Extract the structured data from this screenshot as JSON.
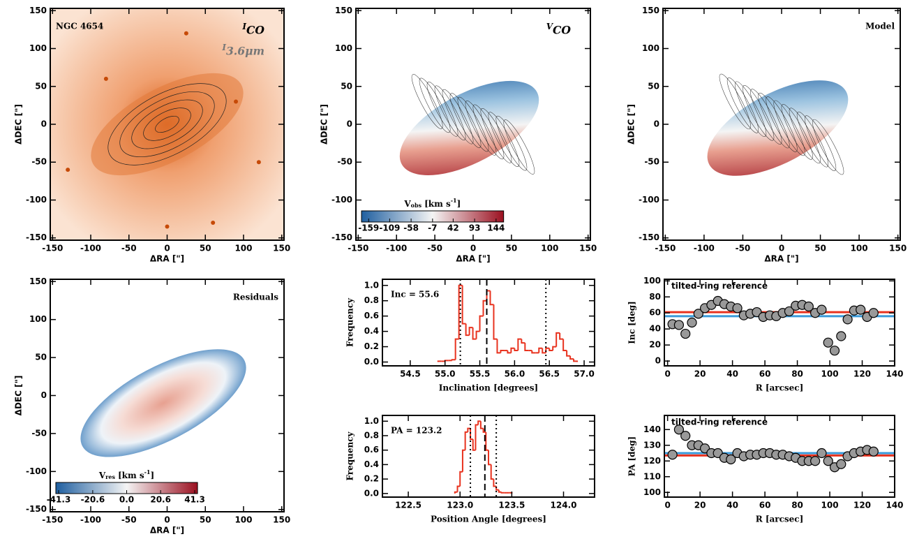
{
  "chart_data": [
    {
      "type": "image",
      "colormap": "orange",
      "title": "NGC 4654",
      "labels": [
        {
          "symbol": "I",
          "subscript": "CO"
        },
        {
          "symbol": "I",
          "subscript": "3.6μm"
        }
      ],
      "xlabel": "ΔRA [\"]",
      "ylabel": "ΔDEC [\"]",
      "xlim": [
        -153,
        153
      ],
      "ylim": [
        -153,
        153
      ],
      "xticks": [
        -150,
        -100,
        -50,
        0,
        50,
        100,
        150
      ],
      "yticks": [
        -150,
        -100,
        -50,
        0,
        50,
        100,
        150
      ]
    },
    {
      "type": "image",
      "colormap": "diverging",
      "labels": [
        {
          "symbol": "V",
          "subscript": "CO"
        }
      ],
      "xlabel": "ΔRA [\"]",
      "ylabel": "ΔDEC [\"]",
      "xlim": [
        -153,
        153
      ],
      "ylim": [
        -153,
        153
      ],
      "xticks": [
        -150,
        -100,
        -50,
        0,
        50,
        100,
        150
      ],
      "yticks": [
        -150,
        -100,
        -50,
        0,
        50,
        100,
        150
      ],
      "colorbar": {
        "symbol": "V",
        "subscript": "obs",
        "unit": "[km s",
        "exponent": "-1",
        "close": "]",
        "lim": [
          -176,
          162
        ],
        "ticks": [
          -159,
          -109,
          -58,
          -7,
          42,
          93,
          144
        ]
      }
    },
    {
      "type": "image",
      "colormap": "model",
      "title": "Model",
      "xlabel": "ΔRA [\"]",
      "ylabel": "ΔDEC [\"]",
      "xlim": [
        -153,
        153
      ],
      "ylim": [
        -153,
        153
      ],
      "xticks": [
        -150,
        -100,
        -50,
        0,
        50,
        100,
        150
      ],
      "yticks": [
        -150,
        -100,
        -50,
        0,
        50,
        100,
        150
      ]
    },
    {
      "type": "image",
      "colormap": "residual",
      "title": "Residuals",
      "xlabel": "ΔRA [\"]",
      "ylabel": "ΔDEC [\"]",
      "xlim": [
        -153,
        153
      ],
      "ylim": [
        -153,
        153
      ],
      "xticks": [
        -150,
        -100,
        -50,
        0,
        50,
        100,
        150
      ],
      "yticks": [
        -150,
        -100,
        -50,
        0,
        50,
        100,
        150
      ],
      "colorbar": {
        "symbol": "V",
        "subscript": "res",
        "unit": "[km s",
        "exponent": "-1",
        "close": "]",
        "lim": [
          -43,
          43
        ],
        "ticks": [
          -41.3,
          -20.6,
          {
            "value": 0,
            "label": "0.0"
          },
          20.6,
          41.3
        ]
      }
    },
    {
      "type": "histogram",
      "color": "#e8321e",
      "label": "Inc = 55.6",
      "xlabel": "Inclination [degrees]",
      "ylabel": "Frequency",
      "xlim": [
        54.1,
        57.15
      ],
      "ylim": [
        -0.05,
        1.08
      ],
      "xticks": [
        54.5,
        {
          "value": 55,
          "label": "55.0"
        },
        55.5,
        {
          "value": 56,
          "label": "56.0"
        },
        56.5,
        {
          "value": 57,
          "label": "57.0"
        }
      ],
      "yticks": [
        {
          "value": 0,
          "label": "0.0"
        },
        0.2,
        0.4,
        0.6,
        0.8,
        {
          "value": 1,
          "label": "1.0"
        }
      ],
      "dashed_line": 55.6,
      "dotted_lines": [
        55.22,
        56.45
      ],
      "bins": [
        54.9,
        54.95,
        55.0,
        55.05,
        55.1,
        55.15,
        55.2,
        55.25,
        55.3,
        55.35,
        55.4,
        55.45,
        55.5,
        55.55,
        55.6,
        55.65,
        55.7,
        55.75,
        55.8,
        55.85,
        55.9,
        55.95,
        56.0,
        56.05,
        56.1,
        56.15,
        56.2,
        56.25,
        56.3,
        56.35,
        56.4,
        56.45,
        56.5,
        56.55,
        56.6,
        56.65,
        56.7,
        56.75,
        56.8,
        56.85,
        56.9
      ],
      "values": [
        0.01,
        0.01,
        0.02,
        0.02,
        0.03,
        0.3,
        1.0,
        0.5,
        0.35,
        0.45,
        0.3,
        0.4,
        0.6,
        0.8,
        0.93,
        0.75,
        0.3,
        0.12,
        0.15,
        0.15,
        0.12,
        0.18,
        0.15,
        0.3,
        0.25,
        0.15,
        0.15,
        0.12,
        0.12,
        0.18,
        0.12,
        0.18,
        0.15,
        0.2,
        0.38,
        0.3,
        0.15,
        0.08,
        0.04,
        0.01
      ]
    },
    {
      "type": "histogram",
      "color": "#e8321e",
      "label": "PA = 123.2",
      "xlabel": "Position Angle [degrees]",
      "ylabel": "Frequency",
      "xlim": [
        122.25,
        124.3
      ],
      "ylim": [
        -0.05,
        1.08
      ],
      "xticks": [
        122.5,
        {
          "value": 123,
          "label": "123.0"
        },
        123.5,
        {
          "value": 124,
          "label": "124.0"
        }
      ],
      "yticks": [
        {
          "value": 0,
          "label": "0.0"
        },
        0.2,
        0.4,
        0.6,
        0.8,
        {
          "value": 1,
          "label": "1.0"
        }
      ],
      "dashed_line": 123.24,
      "dotted_lines": [
        123.1,
        123.35
      ],
      "bins": [
        122.95,
        122.975,
        123.0,
        123.025,
        123.05,
        123.075,
        123.1,
        123.125,
        123.15,
        123.175,
        123.2,
        123.225,
        123.25,
        123.275,
        123.3,
        123.325,
        123.35,
        123.375,
        123.4,
        123.425,
        123.45,
        123.475,
        123.5
      ],
      "values": [
        0.02,
        0.1,
        0.3,
        0.6,
        0.85,
        0.9,
        0.75,
        0.6,
        0.95,
        1.0,
        0.9,
        0.85,
        0.6,
        0.4,
        0.2,
        0.1,
        0.05,
        0.02,
        0.01,
        0.01,
        0.01,
        0.01
      ]
    },
    {
      "type": "scatter",
      "title": "tilted-ring reference",
      "xlabel": "R [arcsec]",
      "ylabel": "Inc [deg]",
      "xlim": [
        -2,
        140
      ],
      "ylim": [
        -6,
        102
      ],
      "xticks": [
        0,
        20,
        40,
        60,
        80,
        100,
        120,
        140
      ],
      "yticks": [
        0,
        20,
        40,
        60,
        80,
        100
      ],
      "reference_lines": [
        {
          "value": 61,
          "color": "#e8321e"
        },
        {
          "value": 56,
          "color": "#3a9ad9"
        }
      ],
      "x": [
        3,
        7,
        11,
        15,
        19,
        23,
        27,
        31,
        35,
        39,
        43,
        47,
        51,
        55,
        59,
        63,
        67,
        71,
        75,
        79,
        83,
        87,
        91,
        95,
        99,
        103,
        107,
        111,
        115,
        119,
        123,
        127
      ],
      "values": [
        46,
        45,
        34,
        48,
        59,
        66,
        70,
        75,
        71,
        68,
        66,
        57,
        59,
        61,
        55,
        57,
        56,
        60,
        62,
        69,
        70,
        68,
        60,
        64,
        23,
        13,
        31,
        52,
        63,
        64,
        55,
        60
      ]
    },
    {
      "type": "scatter",
      "title": "tilted-ring reference",
      "xlabel": "R [arcsec]",
      "ylabel": "PA [deg]",
      "xlim": [
        -2,
        140
      ],
      "ylim": [
        97,
        149
      ],
      "xticks": [
        0,
        20,
        40,
        60,
        80,
        100,
        120,
        140
      ],
      "yticks": [
        100,
        110,
        120,
        130,
        140
      ],
      "reference_lines": [
        {
          "value": 123.5,
          "color": "#e8321e"
        },
        {
          "value": 125,
          "color": "#3a9ad9"
        }
      ],
      "x": [
        3,
        7,
        11,
        15,
        19,
        23,
        27,
        31,
        35,
        39,
        43,
        47,
        51,
        55,
        59,
        63,
        67,
        71,
        75,
        79,
        83,
        87,
        91,
        95,
        99,
        103,
        107,
        111,
        115,
        119,
        123,
        127
      ],
      "values": [
        124,
        140,
        136,
        130,
        130,
        128,
        125,
        125,
        122,
        121,
        125,
        123,
        124,
        124,
        125,
        125,
        124,
        124,
        123,
        122,
        120,
        120,
        120,
        125,
        120,
        116,
        118,
        123,
        125,
        126,
        127,
        126
      ]
    }
  ]
}
